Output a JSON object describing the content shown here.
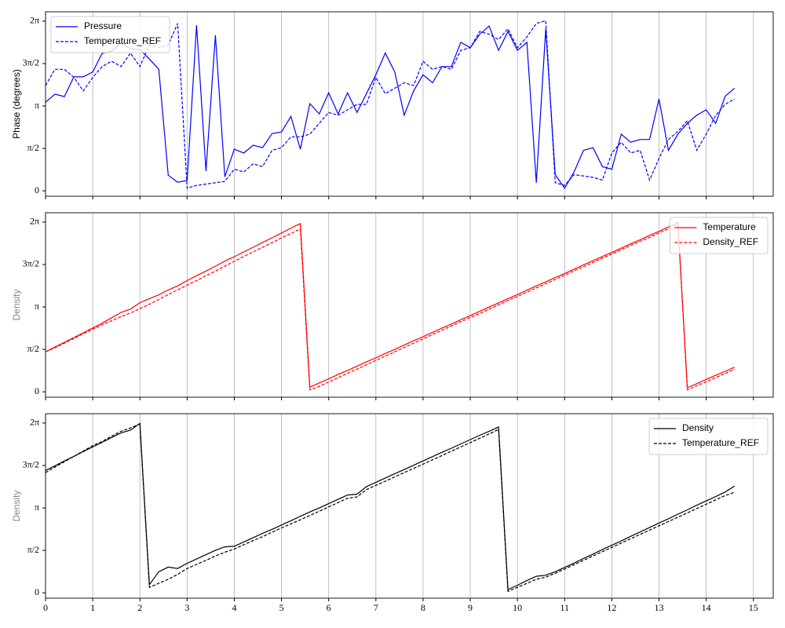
{
  "chart_data": [
    {
      "type": "line",
      "ylabel": "Phase (degrees)",
      "ylabel_color": "#000000",
      "legend": "upper left",
      "grid": "x",
      "x": [
        0,
        0.2,
        0.4,
        0.6,
        0.8,
        1,
        1.2,
        1.4,
        1.6,
        1.8,
        2,
        2.2,
        2.4,
        2.6,
        2.8,
        3,
        3.2,
        3.4,
        3.6,
        3.8,
        4,
        4.2,
        4.4,
        4.6,
        4.8,
        5,
        5.2,
        5.4,
        5.6,
        5.8,
        6,
        6.2,
        6.4,
        6.6,
        6.8,
        7,
        7.2,
        7.4,
        7.6,
        7.8,
        8,
        8.2,
        8.4,
        8.6,
        8.8,
        9,
        9.2,
        9.4,
        9.6,
        9.8,
        10,
        10.2,
        10.4,
        10.6,
        10.8,
        11,
        11.2,
        11.4,
        11.6,
        11.8,
        12,
        12.2,
        12.4,
        12.6,
        12.8,
        13,
        13.2,
        13.4,
        13.6,
        13.8,
        14,
        14.2,
        14.4,
        14.6
      ],
      "xlim": [
        0,
        15.42
      ],
      "xticks": [
        0,
        1,
        2,
        3,
        4,
        5,
        6,
        7,
        8,
        9,
        10,
        11,
        12,
        13,
        14,
        15
      ],
      "ylim": [
        -0.2,
        6.63
      ],
      "yticks": [
        0,
        {
          "value": 1.5708,
          "label": "π/2"
        },
        {
          "value": 3.1416,
          "label": "π"
        },
        {
          "value": 4.7124,
          "label": "3π/2"
        },
        {
          "value": 6.2832,
          "label": "2π"
        }
      ],
      "series": [
        {
          "name": "Pressure",
          "color": "#0000ff",
          "linestyle": "solid",
          "values": [
            3.28,
            3.58,
            3.49,
            4.22,
            4.22,
            4.4,
            5.09,
            5.17,
            5.47,
            5.26,
            5.23,
            4.88,
            4.5,
            0.58,
            0.32,
            0.38,
            6.13,
            0.73,
            5.76,
            0.52,
            1.54,
            1.4,
            1.69,
            1.6,
            2.12,
            2.18,
            2.76,
            1.54,
            3.23,
            2.85,
            3.63,
            2.85,
            3.63,
            2.9,
            3.6,
            4.3,
            5.1,
            4.4,
            2.8,
            3.7,
            4.3,
            4.0,
            4.6,
            4.6,
            5.5,
            5.3,
            5.8,
            6.1,
            5.2,
            5.9,
            5.2,
            5.5,
            0.3,
            6.0,
            0.6,
            0.1,
            0.7,
            1.5,
            1.6,
            0.9,
            0.8,
            2.1,
            1.8,
            1.9,
            1.9,
            3.4,
            1.5,
            2.1,
            2.5,
            2.8,
            3.0,
            2.5,
            3.5,
            3.8
          ]
        },
        {
          "name": "Temperature_REF",
          "color": "#0000ff",
          "linestyle": "dashed",
          "values": [
            3.9,
            4.5,
            4.5,
            4.2,
            3.7,
            4.2,
            4.6,
            4.8,
            4.6,
            5.1,
            4.6,
            5.4,
            5.3,
            5.4,
            6.2,
            0.1,
            0.2,
            0.25,
            0.3,
            0.35,
            0.8,
            0.7,
            1.0,
            0.9,
            1.5,
            1.6,
            2.0,
            2.0,
            2.1,
            2.5,
            2.9,
            2.8,
            3.0,
            3.2,
            3.2,
            4.2,
            3.6,
            3.8,
            4.0,
            3.9,
            4.8,
            4.5,
            4.6,
            4.5,
            5.2,
            5.3,
            5.9,
            5.8,
            5.6,
            6.0,
            5.3,
            5.7,
            6.2,
            6.3,
            0.3,
            0.2,
            0.6,
            0.55,
            0.5,
            0.4,
            1.4,
            1.8,
            1.4,
            1.5,
            0.4,
            1.2,
            1.9,
            2.2,
            2.6,
            1.5,
            2.1,
            2.8,
            3.2,
            3.4
          ]
        }
      ]
    },
    {
      "type": "line",
      "ylabel": "Density",
      "ylabel_color": "#888888",
      "legend": "upper right",
      "grid": "x",
      "x": [
        0,
        0.2,
        0.4,
        0.6,
        0.8,
        1,
        1.2,
        1.4,
        1.6,
        1.8,
        2,
        2.2,
        2.4,
        2.6,
        2.8,
        3,
        3.2,
        3.4,
        3.6,
        3.8,
        4,
        4.2,
        4.4,
        4.6,
        4.8,
        5,
        5.2,
        5.4,
        5.6,
        5.8,
        6,
        6.2,
        6.4,
        6.6,
        6.8,
        7,
        7.2,
        7.4,
        7.6,
        7.8,
        8,
        8.2,
        8.4,
        8.6,
        8.8,
        9,
        9.2,
        9.4,
        9.6,
        9.8,
        10,
        10.2,
        10.4,
        10.6,
        10.8,
        11,
        11.2,
        11.4,
        11.6,
        11.8,
        12,
        12.2,
        12.4,
        12.6,
        12.8,
        13,
        13.2,
        13.4,
        13.6,
        13.8,
        14,
        14.2,
        14.4,
        14.6
      ],
      "xlim": [
        0,
        15.42
      ],
      "xticks": [
        0,
        1,
        2,
        3,
        4,
        5,
        6,
        7,
        8,
        9,
        10,
        11,
        12,
        13,
        14,
        15
      ],
      "ylim": [
        -0.2,
        6.63
      ],
      "yticks": [
        0,
        {
          "value": 1.5708,
          "label": "π/2"
        },
        {
          "value": 3.1416,
          "label": "π"
        },
        {
          "value": 4.7124,
          "label": "3π/2"
        },
        {
          "value": 6.2832,
          "label": "2π"
        }
      ],
      "series": [
        {
          "name": "Temperature",
          "color": "#ff0000",
          "linestyle": "solid",
          "values": [
            1.48,
            1.66,
            1.83,
            2.01,
            2.18,
            2.36,
            2.54,
            2.74,
            2.94,
            3.06,
            3.3,
            3.45,
            3.59,
            3.77,
            3.92,
            4.12,
            4.3,
            4.47,
            4.65,
            4.84,
            5.0,
            5.18,
            5.35,
            5.53,
            5.7,
            5.88,
            6.06,
            6.23,
            0.17,
            0.33,
            0.48,
            0.64,
            0.79,
            0.95,
            1.11,
            1.26,
            1.42,
            1.57,
            1.73,
            1.89,
            2.04,
            2.2,
            2.36,
            2.51,
            2.67,
            2.82,
            2.98,
            3.14,
            3.29,
            3.45,
            3.6,
            3.76,
            3.92,
            4.07,
            4.23,
            4.38,
            4.54,
            4.7,
            4.85,
            5.01,
            5.16,
            5.32,
            5.48,
            5.63,
            5.79,
            5.94,
            6.1,
            6.26,
            0.15,
            0.3,
            0.46,
            0.61,
            0.76,
            0.91
          ]
        },
        {
          "name": "Density_REF",
          "color": "#ff0000",
          "linestyle": "dashed",
          "values": [
            1.48,
            1.63,
            1.8,
            1.97,
            2.15,
            2.32,
            2.48,
            2.63,
            2.78,
            2.92,
            3.08,
            3.24,
            3.42,
            3.6,
            3.77,
            3.95,
            4.12,
            4.3,
            4.47,
            4.65,
            4.83,
            5.01,
            5.18,
            5.35,
            5.52,
            5.7,
            5.86,
            6.03,
            0.07,
            0.2,
            0.36,
            0.52,
            0.68,
            0.84,
            1.0,
            1.16,
            1.32,
            1.48,
            1.64,
            1.8,
            1.96,
            2.12,
            2.28,
            2.44,
            2.6,
            2.75,
            2.9,
            3.06,
            3.22,
            3.38,
            3.53,
            3.69,
            3.85,
            4.0,
            4.16,
            4.32,
            4.48,
            4.63,
            4.79,
            4.95,
            5.1,
            5.26,
            5.42,
            5.57,
            5.72,
            5.88,
            6.03,
            6.2,
            0.07,
            0.22,
            0.37,
            0.53,
            0.68,
            0.83
          ]
        }
      ]
    },
    {
      "type": "line",
      "ylabel": "Density",
      "ylabel_color": "#888888",
      "legend": "upper right",
      "grid": "x",
      "x": [
        0,
        0.2,
        0.4,
        0.6,
        0.8,
        1,
        1.2,
        1.4,
        1.6,
        1.8,
        2,
        2.2,
        2.4,
        2.6,
        2.8,
        3,
        3.2,
        3.4,
        3.6,
        3.8,
        4,
        4.2,
        4.4,
        4.6,
        4.8,
        5,
        5.2,
        5.4,
        5.6,
        5.8,
        6,
        6.2,
        6.4,
        6.6,
        6.8,
        7,
        7.2,
        7.4,
        7.6,
        7.8,
        8,
        8.2,
        8.4,
        8.6,
        8.8,
        9,
        9.2,
        9.4,
        9.6,
        9.8,
        10,
        10.2,
        10.4,
        10.6,
        10.8,
        11,
        11.2,
        11.4,
        11.6,
        11.8,
        12,
        12.2,
        12.4,
        12.6,
        12.8,
        13,
        13.2,
        13.4,
        13.6,
        13.8,
        14,
        14.2,
        14.4,
        14.6
      ],
      "xlim": [
        0,
        15.42
      ],
      "xticks": [
        0,
        1,
        2,
        3,
        4,
        5,
        6,
        7,
        8,
        9,
        10,
        11,
        12,
        13,
        14,
        15
      ],
      "ylim": [
        -0.2,
        6.63
      ],
      "yticks": [
        0,
        {
          "value": 1.5708,
          "label": "π/2"
        },
        {
          "value": 3.1416,
          "label": "π"
        },
        {
          "value": 4.7124,
          "label": "3π/2"
        },
        {
          "value": 6.2832,
          "label": "2π"
        }
      ],
      "series": [
        {
          "name": "Density",
          "color": "#000000",
          "linestyle": "solid",
          "values": [
            4.53,
            4.7,
            4.88,
            5.05,
            5.23,
            5.4,
            5.57,
            5.75,
            5.92,
            6.02,
            6.27,
            0.3,
            0.78,
            0.95,
            0.9,
            1.09,
            1.25,
            1.41,
            1.57,
            1.7,
            1.72,
            1.88,
            2.04,
            2.2,
            2.35,
            2.51,
            2.67,
            2.83,
            2.99,
            3.14,
            3.3,
            3.46,
            3.62,
            3.65,
            3.93,
            4.09,
            4.25,
            4.41,
            4.56,
            4.72,
            4.88,
            5.04,
            5.2,
            5.35,
            5.51,
            5.67,
            5.83,
            5.98,
            6.14,
            0.12,
            0.28,
            0.45,
            0.61,
            0.65,
            0.78,
            0.94,
            1.1,
            1.27,
            1.43,
            1.6,
            1.76,
            1.92,
            2.09,
            2.25,
            2.42,
            2.58,
            2.74,
            2.91,
            3.07,
            3.24,
            3.4,
            3.56,
            3.73,
            3.95
          ]
        },
        {
          "name": "Temperature_REF",
          "color": "#000000",
          "linestyle": "dashed",
          "values": [
            4.45,
            4.65,
            4.85,
            5.05,
            5.25,
            5.45,
            5.6,
            5.8,
            5.98,
            6.1,
            6.25,
            0.2,
            0.35,
            0.5,
            0.68,
            0.9,
            1.05,
            1.2,
            1.36,
            1.5,
            1.62,
            1.78,
            1.93,
            2.08,
            2.24,
            2.4,
            2.55,
            2.7,
            2.86,
            3.02,
            3.18,
            3.34,
            3.5,
            3.55,
            3.82,
            3.98,
            4.13,
            4.29,
            4.45,
            4.6,
            4.76,
            4.92,
            5.08,
            5.24,
            5.4,
            5.56,
            5.72,
            5.88,
            6.05,
            0.05,
            0.2,
            0.35,
            0.5,
            0.58,
            0.72,
            0.88,
            1.04,
            1.2,
            1.36,
            1.52,
            1.68,
            1.84,
            2.0,
            2.16,
            2.32,
            2.48,
            2.64,
            2.8,
            2.96,
            3.12,
            3.28,
            3.44,
            3.6,
            3.72
          ]
        }
      ]
    }
  ]
}
